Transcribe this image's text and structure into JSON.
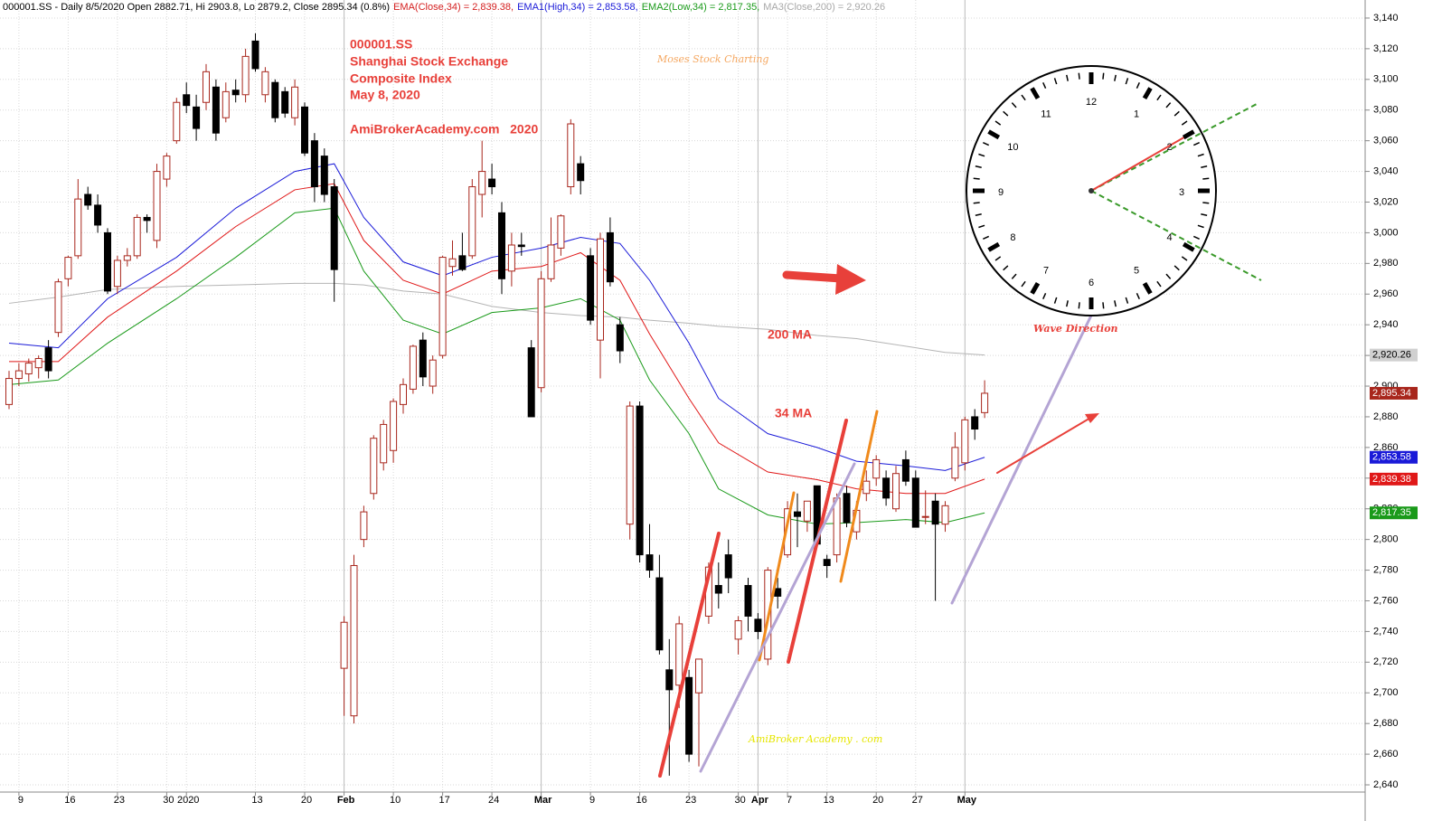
{
  "chart_data": {
    "type": "candlestick",
    "header": "000001.SS - Daily 8/5/2020 Open 2882.71, Hi 2903.8, Lo 2879.2, Close 2895.34 (0.8%)",
    "header_items": [
      {
        "text": "EMA(Close,34) = 2,839.38,",
        "color": "#d42020"
      },
      {
        "text": "EMA1(High,34) = 2,853.58,",
        "color": "#1a1ad8"
      },
      {
        "text": "EMA2(Low,34) = 2,817.35,",
        "color": "#1a9a1a"
      },
      {
        "text": "MA3(Close,200) = 2,920.26",
        "color": "#a8a8a8"
      }
    ],
    "annotations": {
      "info": [
        "000001.SS",
        "Shanghai Stock Exchange",
        "Composite Index",
        "May 8, 2020",
        "AmiBrokerAcademy.com   2020"
      ],
      "brand": "Moses Stock Charting",
      "ma200": "200 MA",
      "ma34": "34 MA",
      "wave": "Wave Direction",
      "site": "AmiBroker Academy . com",
      "clock_numbers": [
        "12",
        "1",
        "2",
        "3",
        "4",
        "5",
        "6",
        "7",
        "8",
        "9",
        "10",
        "11"
      ]
    },
    "categories": [
      null,
      "9",
      null,
      null,
      null,
      null,
      "16",
      null,
      null,
      null,
      null,
      "23",
      null,
      null,
      null,
      null,
      "30",
      null,
      "2020",
      null,
      null,
      null,
      null,
      null,
      null,
      "13",
      null,
      null,
      null,
      null,
      "20",
      null,
      null,
      null,
      "Feb",
      null,
      null,
      null,
      null,
      "10",
      null,
      null,
      null,
      null,
      "17",
      null,
      null,
      null,
      null,
      "24",
      null,
      null,
      null,
      null,
      "Mar",
      null,
      null,
      null,
      null,
      "9",
      null,
      null,
      null,
      null,
      "16",
      null,
      null,
      null,
      null,
      "23",
      null,
      null,
      null,
      null,
      "30",
      null,
      "Apr",
      null,
      null,
      "7",
      null,
      null,
      null,
      "13",
      null,
      null,
      null,
      null,
      "20",
      null,
      null,
      null,
      "27",
      null,
      null,
      null,
      null,
      "May",
      null,
      null
    ],
    "open": [
      2888,
      2905,
      2908,
      2912,
      2925,
      2935,
      2970,
      2985,
      3025,
      3018,
      3000,
      2965,
      2982,
      2985,
      3010,
      2995,
      3035,
      3060,
      3090,
      3082,
      3085,
      3095,
      3075,
      3093,
      3090,
      3125,
      3090,
      3098,
      3092,
      3075,
      3082,
      3060,
      3050,
      3030,
      2716,
      2685,
      2800,
      2830,
      2850,
      2858,
      2888,
      2898,
      2930,
      2900,
      2920,
      2978,
      2985,
      2985,
      3025,
      3035,
      3013,
      2975,
      2992,
      2925,
      2899,
      2970,
      2990,
      3030,
      3045,
      2985,
      2930,
      3000,
      2940,
      2810,
      2887,
      2790,
      2775,
      2715,
      2705,
      2710,
      2700,
      2750,
      2770,
      2790,
      2735,
      2770,
      2748,
      2722,
      2768,
      2790,
      2818,
      2812,
      2835,
      2787,
      2790,
      2830,
      2805,
      2830,
      2840,
      2840,
      2820,
      2852,
      2840,
      2815,
      2825,
      2810,
      2840,
      2850,
      2880,
      2882.71
    ],
    "high": [
      2910,
      2915,
      2918,
      2920,
      2930,
      2970,
      2985,
      3035,
      3030,
      3025,
      3003,
      2985,
      2990,
      3012,
      3012,
      3045,
      3052,
      3088,
      3098,
      3090,
      3110,
      3100,
      3098,
      3100,
      3120,
      3130,
      3108,
      3100,
      3095,
      3100,
      3085,
      3065,
      3055,
      3035,
      2750,
      2790,
      2822,
      2868,
      2878,
      2892,
      2905,
      2927,
      2935,
      2920,
      2985,
      2995,
      3000,
      3035,
      3060,
      3045,
      3020,
      3000,
      3000,
      2930,
      2975,
      3010,
      3012,
      3074,
      3050,
      2990,
      3000,
      3010,
      2945,
      2890,
      2890,
      2810,
      2790,
      2735,
      2750,
      2715,
      2722,
      2785,
      2785,
      2800,
      2750,
      2775,
      2752,
      2782,
      2775,
      2825,
      2830,
      2825,
      2835,
      2790,
      2830,
      2835,
      2825,
      2845,
      2855,
      2845,
      2848,
      2858,
      2845,
      2832,
      2830,
      2825,
      2870,
      2880,
      2885,
      2903.8
    ],
    "low": [
      2885,
      2900,
      2903,
      2905,
      2905,
      2932,
      2965,
      2983,
      3015,
      3000,
      2960,
      2960,
      2978,
      2983,
      3000,
      2990,
      3030,
      3058,
      3078,
      3060,
      3080,
      3060,
      3072,
      3085,
      3085,
      3105,
      3085,
      3072,
      3075,
      3070,
      3050,
      3020,
      3020,
      2955,
      2685,
      2680,
      2795,
      2826,
      2845,
      2850,
      2882,
      2895,
      2900,
      2895,
      2918,
      2972,
      2975,
      2983,
      3010,
      3025,
      2960,
      2965,
      2985,
      2880,
      2896,
      2968,
      2985,
      3025,
      3025,
      2940,
      2905,
      2965,
      2915,
      2800,
      2785,
      2775,
      2725,
      2646,
      2690,
      2655,
      2652,
      2745,
      2755,
      2765,
      2725,
      2740,
      2735,
      2718,
      2755,
      2788,
      2795,
      2805,
      2795,
      2775,
      2785,
      2808,
      2800,
      2825,
      2835,
      2822,
      2818,
      2835,
      2808,
      2810,
      2760,
      2805,
      2838,
      2845,
      2865,
      2879.2
    ],
    "close": [
      2905,
      2910,
      2915,
      2918,
      2910,
      2968,
      2984,
      3022,
      3018,
      3005,
      2962,
      2982,
      2985,
      3010,
      3008,
      3040,
      3050,
      3085,
      3083,
      3068,
      3105,
      3065,
      3092,
      3090,
      3115,
      3107,
      3105,
      3075,
      3078,
      3095,
      3052,
      3030,
      3025,
      2976,
      2746,
      2783,
      2818,
      2866,
      2875,
      2890,
      2901,
      2926,
      2906,
      2917,
      2984,
      2983,
      2976,
      3030,
      3040,
      3030,
      2970,
      2992,
      2991,
      2880,
      2970,
      2992,
      3011,
      3071,
      3034,
      2943,
      2996,
      2968,
      2923,
      2887,
      2790,
      2780,
      2728,
      2702,
      2745,
      2660,
      2722,
      2782,
      2765,
      2775,
      2747,
      2750,
      2740,
      2780,
      2763,
      2820,
      2815,
      2825,
      2797,
      2783,
      2827,
      2811,
      2819,
      2838,
      2852,
      2827,
      2843,
      2838,
      2808,
      2815,
      2810,
      2822,
      2860,
      2878,
      2872,
      2895.34
    ],
    "close_label": "2,895.34",
    "up_color": "#a8261c",
    "down_color": "#000000",
    "label_color": "#d42020",
    "lines": [
      {
        "name": "MA3(Close,200)",
        "color": "#b4b4b4",
        "last_label": "2,920.26",
        "x": [
          0,
          5,
          10,
          17,
          23,
          29,
          33,
          36,
          40,
          44,
          49,
          54,
          58,
          62,
          65,
          69,
          72,
          77,
          82,
          86,
          91,
          95,
          99
        ],
        "values": [
          2954,
          2958,
          2963,
          2965,
          2966,
          2967,
          2967,
          2966,
          2962,
          2960,
          2952,
          2948,
          2946,
          2945,
          2943,
          2941,
          2939,
          2937,
          2933,
          2931,
          2926,
          2922,
          2920.26
        ]
      },
      {
        "name": "EMA1(High,34)",
        "color": "#1a1ad8",
        "last_label": "2,853.58",
        "x": [
          0,
          5,
          10,
          17,
          23,
          29,
          33,
          36,
          40,
          44,
          49,
          54,
          58,
          62,
          65,
          69,
          72,
          77,
          82,
          86,
          91,
          95,
          99
        ],
        "values": [
          2928,
          2925,
          2957,
          2984,
          3016,
          3040,
          3045,
          3010,
          2981,
          2972,
          2984,
          2990,
          2997,
          2993,
          2969,
          2928,
          2892,
          2869,
          2860,
          2851,
          2848,
          2845,
          2853.58
        ]
      },
      {
        "name": "EMA(Close,34)",
        "color": "#e01818",
        "last_label": "2,839.38",
        "x": [
          0,
          5,
          10,
          17,
          23,
          29,
          33,
          36,
          40,
          44,
          49,
          54,
          58,
          62,
          65,
          69,
          72,
          77,
          82,
          86,
          91,
          95,
          99
        ],
        "values": [
          2916,
          2916,
          2945,
          2975,
          3004,
          3028,
          3032,
          2995,
          2969,
          2960,
          2975,
          2978,
          2987,
          2969,
          2934,
          2892,
          2863,
          2844,
          2839,
          2833,
          2830,
          2830,
          2839.38
        ]
      },
      {
        "name": "EMA2(Low,34)",
        "color": "#1a9a1a",
        "last_label": "2,817.35",
        "x": [
          0,
          5,
          10,
          17,
          23,
          29,
          33,
          36,
          40,
          44,
          49,
          54,
          58,
          62,
          65,
          69,
          72,
          77,
          82,
          86,
          91,
          95,
          99
        ],
        "values": [
          2901,
          2904,
          2928,
          2957,
          2984,
          3013,
          3016,
          2975,
          2943,
          2934,
          2948,
          2951,
          2957,
          2943,
          2904,
          2869,
          2833,
          2816,
          2810,
          2811,
          2813,
          2811,
          2817.35
        ]
      }
    ],
    "ylim": [
      2635,
      3150
    ],
    "yticks": [
      {
        "value": 2640,
        "label": "2,640"
      },
      {
        "value": 2660,
        "label": "2,660"
      },
      {
        "value": 2680,
        "label": "2,680"
      },
      {
        "value": 2700,
        "label": "2,700"
      },
      {
        "value": 2720,
        "label": "2,720"
      },
      {
        "value": 2740,
        "label": "2,740"
      },
      {
        "value": 2760,
        "label": "2,760"
      },
      {
        "value": 2780,
        "label": "2,780"
      },
      {
        "value": 2800,
        "label": "2,800"
      },
      {
        "value": 2820,
        "label": "2,820"
      },
      {
        "value": 2840,
        "label": "2,840"
      },
      {
        "value": 2860,
        "label": "2,860"
      },
      {
        "value": 2880,
        "label": "2,880"
      },
      {
        "value": 2900,
        "label": "2,900"
      },
      {
        "value": 2920,
        "label": "2,920"
      },
      {
        "value": 2940,
        "label": "2,940"
      },
      {
        "value": 2960,
        "label": "2,960"
      },
      {
        "value": 2980,
        "label": "2,980"
      },
      {
        "value": 3000,
        "label": "3,000"
      },
      {
        "value": 3020,
        "label": "3,020"
      },
      {
        "value": 3040,
        "label": "3,040"
      },
      {
        "value": 3060,
        "label": "3,060"
      },
      {
        "value": 3080,
        "label": "3,080"
      },
      {
        "value": 3100,
        "label": "3,100"
      },
      {
        "value": 3120,
        "label": "3,120"
      },
      {
        "value": 3140,
        "label": "3,140"
      }
    ],
    "grid": true
  }
}
